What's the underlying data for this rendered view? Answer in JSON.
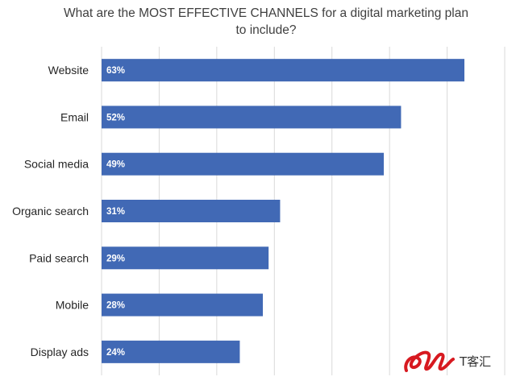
{
  "chart_data": {
    "type": "bar",
    "orientation": "horizontal",
    "title": "What are the MOST EFFECTIVE CHANNELS for a digital marketing plan to include?",
    "title_lines": [
      "What are the MOST EFFECTIVE CHANNELS for a digital marketing plan",
      "to include?"
    ],
    "categories": [
      "Website",
      "Email",
      "Social media",
      "Organic search",
      "Paid search",
      "Mobile",
      "Display ads"
    ],
    "values": [
      63,
      52,
      49,
      31,
      29,
      28,
      24
    ],
    "value_labels": [
      "63%",
      "52%",
      "49%",
      "31%",
      "29%",
      "28%",
      "24%"
    ],
    "xlim": [
      0,
      70
    ],
    "grid": true,
    "legend": "none",
    "bar_color": "#4169B5",
    "grid_color": "#D9D9D9",
    "label_color": "#FFFFFF"
  },
  "watermark": {
    "text": "T客汇",
    "logo_color": "#D71920"
  }
}
